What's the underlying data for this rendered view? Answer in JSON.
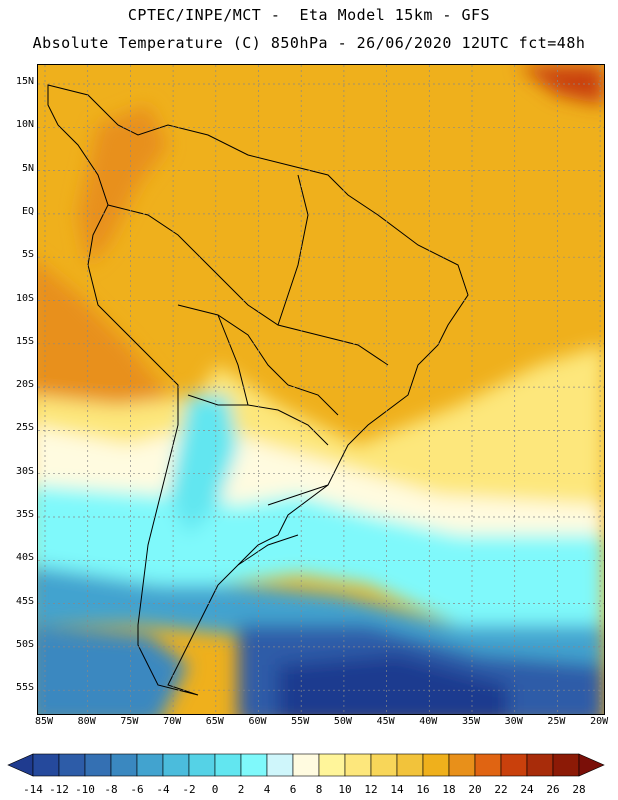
{
  "header": {
    "line1": "CPTEC/INPE/MCT -  Eta Model 15km - GFS",
    "line2": "Absolute Temperature (C) 850hPa - 26/06/2020 12UTC fct=48h"
  },
  "map": {
    "lat_labels": [
      "15N",
      "10N",
      "5N",
      "EQ",
      "5S",
      "10S",
      "15S",
      "20S",
      "25S",
      "30S",
      "35S",
      "40S",
      "45S",
      "50S",
      "55S"
    ],
    "lon_labels": [
      "85W",
      "80W",
      "75W",
      "70W",
      "65W",
      "60W",
      "55W",
      "50W",
      "45W",
      "40W",
      "35W",
      "30W",
      "25W",
      "20W"
    ],
    "land_outline_color": "#000000",
    "grid_style": "dotted"
  },
  "legend": {
    "labels": [
      "-14",
      "-12",
      "-10",
      "-8",
      "-6",
      "-4",
      "-2",
      "0",
      "2",
      "4",
      "6",
      "8",
      "10",
      "12",
      "14",
      "16",
      "18",
      "20",
      "22",
      "24",
      "26",
      "28"
    ],
    "colors": [
      "#1f3b8f",
      "#25499c",
      "#2d5ca8",
      "#3470b3",
      "#3a88c0",
      "#42a3cf",
      "#4bbcdc",
      "#55d2e6",
      "#62e6f0",
      "#7ff9fb",
      "#cff6fb",
      "#fffbe0",
      "#fff59a",
      "#fde77c",
      "#f8d659",
      "#f2c33b",
      "#efb01c",
      "#e8901a",
      "#e06412",
      "#c9400c",
      "#a82c0a",
      "#8c1a06",
      "#7a0f08"
    ]
  }
}
